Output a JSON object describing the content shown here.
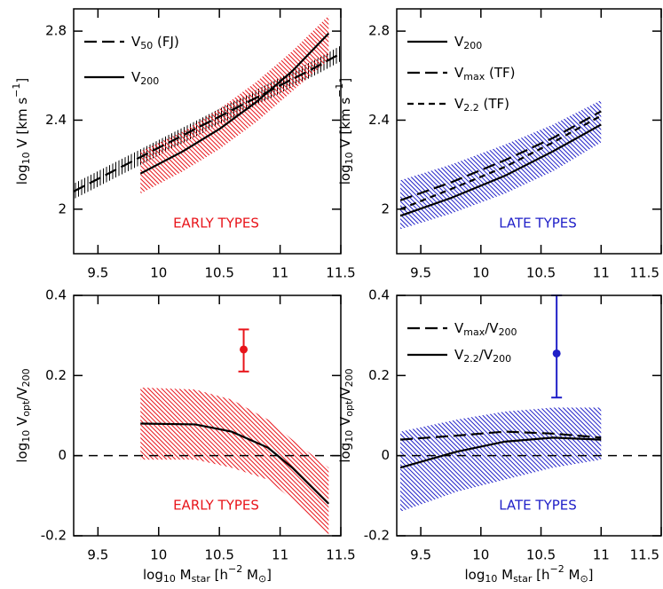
{
  "chart_data": [
    {
      "type": "line",
      "xlim": [
        9.3,
        11.5
      ],
      "xticks": [
        9.5,
        10,
        10.5,
        11,
        11.5
      ],
      "ylim": [
        1.8,
        2.9
      ],
      "yticks": [
        2,
        2.4,
        2.8
      ],
      "ylabel": [
        "log",
        "10",
        " V [km s",
        "−1",
        "]"
      ],
      "legend": "upper left",
      "annotation": "EARLY TYPES",
      "annotation_color": "#e8141a",
      "series": [
        {
          "name": [
            "V",
            "50",
            " (FJ)"
          ],
          "color": "#000000",
          "dash": "long",
          "hatch": "vertical",
          "x": [
            9.3,
            9.8,
            10.3,
            10.8,
            11.3,
            11.5
          ],
          "values": [
            2.08,
            2.22,
            2.36,
            2.5,
            2.64,
            2.7
          ],
          "upper": [
            2.115,
            2.255,
            2.395,
            2.535,
            2.675,
            2.735
          ],
          "lower": [
            2.045,
            2.185,
            2.325,
            2.465,
            2.605,
            2.665
          ]
        },
        {
          "name": [
            "V",
            "200"
          ],
          "color": "#000000",
          "band_color": "#e8141a",
          "dash": "solid",
          "hatch": "diagonal",
          "x": [
            9.85,
            10.2,
            10.5,
            10.8,
            11.1,
            11.4
          ],
          "values": [
            2.16,
            2.26,
            2.36,
            2.48,
            2.62,
            2.79
          ],
          "upper": [
            2.26,
            2.35,
            2.45,
            2.57,
            2.71,
            2.87
          ],
          "lower": [
            2.07,
            2.17,
            2.27,
            2.39,
            2.53,
            2.67
          ]
        }
      ]
    },
    {
      "type": "line",
      "xlim": [
        9.3,
        11.5
      ],
      "xticks": [
        9.5,
        10,
        10.5,
        11,
        11.5
      ],
      "ylim": [
        1.8,
        2.9
      ],
      "yticks": [
        2,
        2.4,
        2.8
      ],
      "ylabel": [
        "log",
        "10",
        " V [km s",
        "−1",
        "]"
      ],
      "legend": "upper left",
      "annotation": "LATE TYPES",
      "annotation_color": "#2020c8",
      "series": [
        {
          "name": [
            "V",
            "200"
          ],
          "color": "#000000",
          "band_color": "#2020c8",
          "dash": "solid",
          "hatch": "diagonal",
          "x": [
            9.33,
            9.75,
            10.2,
            10.6,
            11.0
          ],
          "values": [
            1.97,
            2.05,
            2.15,
            2.26,
            2.38
          ],
          "upper": [
            2.13,
            2.2,
            2.29,
            2.38,
            2.49
          ],
          "lower": [
            1.91,
            1.98,
            2.07,
            2.17,
            2.3
          ]
        },
        {
          "name": [
            "V",
            "max",
            " (TF)"
          ],
          "color": "#000000",
          "dash": "long",
          "x": [
            9.33,
            9.75,
            10.2,
            10.6,
            11.0
          ],
          "values": [
            2.04,
            2.12,
            2.22,
            2.32,
            2.44
          ]
        },
        {
          "name": [
            "V",
            "2.2",
            " (TF)"
          ],
          "color": "#000000",
          "dash": "short",
          "x": [
            9.33,
            9.75,
            10.2,
            10.6,
            11.0
          ],
          "values": [
            2.0,
            2.09,
            2.19,
            2.3,
            2.42
          ]
        }
      ]
    },
    {
      "type": "line",
      "xlim": [
        9.3,
        11.5
      ],
      "xticks": [
        9.5,
        10,
        10.5,
        11,
        11.5
      ],
      "ylim": [
        -0.2,
        0.4
      ],
      "yticks": [
        -0.2,
        0,
        0.2,
        0.4
      ],
      "xlabel": [
        "log",
        "10",
        " M",
        "star",
        " [h",
        "−2",
        " M",
        "⊙",
        "]"
      ],
      "ylabel": [
        "log",
        "10",
        " V",
        "opt",
        "/V",
        "200"
      ],
      "reference_line": 0,
      "annotation": "EARLY TYPES",
      "annotation_color": "#e8141a",
      "series": [
        {
          "color": "#000000",
          "band_color": "#e8141a",
          "dash": "solid",
          "hatch": "diagonal",
          "x": [
            9.85,
            10.3,
            10.6,
            10.9,
            11.1,
            11.4
          ],
          "values": [
            0.08,
            0.078,
            0.06,
            0.02,
            -0.03,
            -0.12
          ],
          "upper": [
            0.17,
            0.165,
            0.14,
            0.09,
            0.04,
            -0.03
          ],
          "lower": [
            -0.01,
            -0.01,
            -0.03,
            -0.06,
            -0.11,
            -0.2
          ]
        }
      ],
      "points": {
        "color": "#e8141a",
        "x": [
          10.7
        ],
        "y": [
          0.265
        ],
        "err_minus": [
          0.055
        ],
        "err_plus": [
          0.05
        ]
      }
    },
    {
      "type": "line",
      "xlim": [
        9.3,
        11.5
      ],
      "xticks": [
        9.5,
        10,
        10.5,
        11,
        11.5
      ],
      "ylim": [
        -0.2,
        0.4
      ],
      "yticks": [
        -0.2,
        0,
        0.2,
        0.4
      ],
      "xlabel": [
        "log",
        "10",
        " M",
        "star",
        " [h",
        "−2",
        " M",
        "⊙",
        "]"
      ],
      "ylabel": [
        "log",
        "10",
        " V",
        "opt",
        "/V",
        "200"
      ],
      "reference_line": 0,
      "legend": "upper left",
      "annotation": "LATE TYPES",
      "annotation_color": "#2020c8",
      "series": [
        {
          "name": [
            "V",
            "max",
            "/V",
            "200"
          ],
          "color": "#000000",
          "dash": "long",
          "x": [
            9.33,
            9.8,
            10.2,
            10.6,
            11.0
          ],
          "values": [
            0.04,
            0.05,
            0.06,
            0.055,
            0.045
          ]
        },
        {
          "name": [
            "V",
            "2.2",
            "/V",
            "200"
          ],
          "color": "#000000",
          "band_color": "#2020c8",
          "dash": "solid",
          "hatch": "diagonal",
          "x": [
            9.33,
            9.8,
            10.2,
            10.6,
            11.0
          ],
          "values": [
            -0.03,
            0.01,
            0.035,
            0.045,
            0.04
          ],
          "upper": [
            0.06,
            0.09,
            0.11,
            0.12,
            0.12
          ],
          "lower": [
            -0.14,
            -0.09,
            -0.06,
            -0.03,
            -0.01
          ]
        }
      ],
      "points": {
        "color": "#2020c8",
        "x": [
          10.63
        ],
        "y": [
          0.255
        ],
        "err_minus": [
          0.11
        ],
        "err_plus": [
          0.145
        ]
      }
    }
  ]
}
